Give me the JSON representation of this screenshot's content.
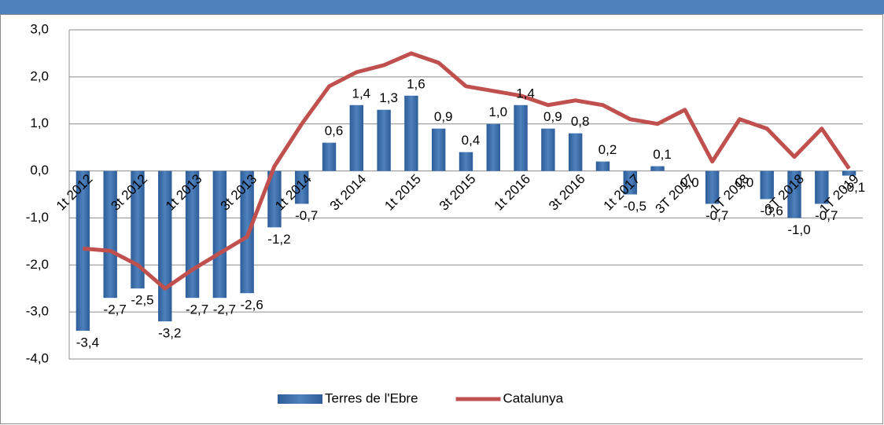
{
  "chart_data": {
    "type": "bar-line",
    "categories": [
      "1t 2012",
      null,
      "3t 2012",
      null,
      "1t 2013",
      null,
      "3t 2013",
      null,
      "1t 2014",
      null,
      "3t 2014",
      null,
      "1t 2015",
      null,
      "3t 2015",
      null,
      "1t 2016",
      null,
      "3t 2016",
      null,
      "1t 2017",
      null,
      "3T 2017",
      null,
      "1T 2018",
      null,
      "3T 2018",
      null,
      "1T 2019"
    ],
    "series": [
      {
        "name": "Terres de l'Ebre",
        "type": "bar",
        "color": "#4f81bd",
        "values": [
          -3.4,
          -2.7,
          -2.5,
          -3.2,
          -2.7,
          -2.7,
          -2.6,
          -1.2,
          -0.7,
          0.6,
          1.4,
          1.3,
          1.6,
          0.9,
          0.4,
          1.0,
          1.4,
          0.9,
          0.8,
          0.2,
          -0.5,
          0.1,
          0.0,
          -0.7,
          0.0,
          -0.6,
          -1.0,
          -0.7,
          -0.1
        ],
        "value_labels": [
          "-3,4",
          "-2,7",
          "-2,5",
          "-3,2",
          "-2,7",
          "-2,7",
          "-2,6",
          "-1,2",
          "-0,7",
          "0,6",
          "1,4",
          "1,3",
          "1,6",
          "0,9",
          "0,4",
          "1,0",
          "1,4",
          "0,9",
          "0,8",
          "0,2",
          "-0,5",
          "0,1",
          "0,0",
          "-0,7",
          "0,0",
          "-0,6",
          "-1,0",
          "-0,7",
          "-0,1"
        ]
      },
      {
        "name": "Catalunya",
        "type": "line",
        "color": "#c0504d",
        "values": [
          -1.65,
          -1.7,
          -2.0,
          -2.5,
          -2.1,
          -1.75,
          -1.4,
          0.1,
          1.0,
          1.8,
          2.1,
          2.25,
          2.5,
          2.3,
          1.8,
          1.7,
          1.6,
          1.4,
          1.5,
          1.4,
          1.1,
          1.0,
          1.3,
          0.2,
          1.1,
          0.9,
          0.3,
          0.9,
          0.05
        ]
      }
    ],
    "ylim": [
      -4,
      3
    ],
    "yticks": [
      {
        "value": -4,
        "label": "-4,0"
      },
      {
        "value": -3,
        "label": "-3,0"
      },
      {
        "value": -2,
        "label": "-2,0"
      },
      {
        "value": -1,
        "label": "-1,0"
      },
      {
        "value": 0,
        "label": "0,0"
      },
      {
        "value": 1,
        "label": "1,0"
      },
      {
        "value": 2,
        "label": "2,0"
      },
      {
        "value": 3,
        "label": "3,0"
      }
    ],
    "grid": true,
    "legend": "bottom"
  }
}
